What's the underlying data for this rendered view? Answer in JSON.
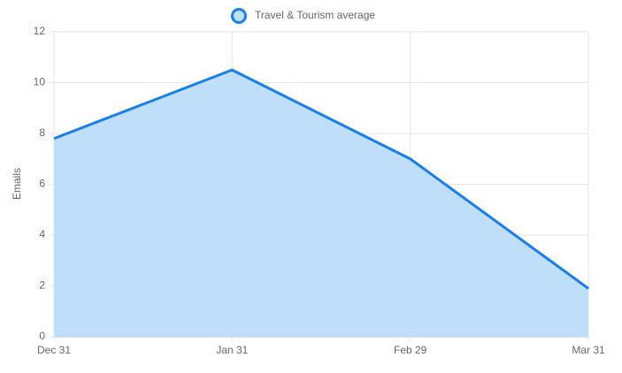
{
  "chart_data": {
    "type": "area",
    "y_label": "Emails",
    "categories": [
      "Dec 31",
      "Jan 31",
      "Feb 29",
      "Mar 31"
    ],
    "series": [
      {
        "name": "Travel & Tourism average",
        "color": "#1a7fe6",
        "fill": "#bfdefa",
        "values": [
          7.8,
          10.5,
          7.0,
          1.9
        ]
      }
    ],
    "ylim": [
      0,
      12
    ],
    "yticks": [
      0,
      2,
      4,
      6,
      8,
      10,
      12
    ],
    "grid": true,
    "legend": "top"
  }
}
